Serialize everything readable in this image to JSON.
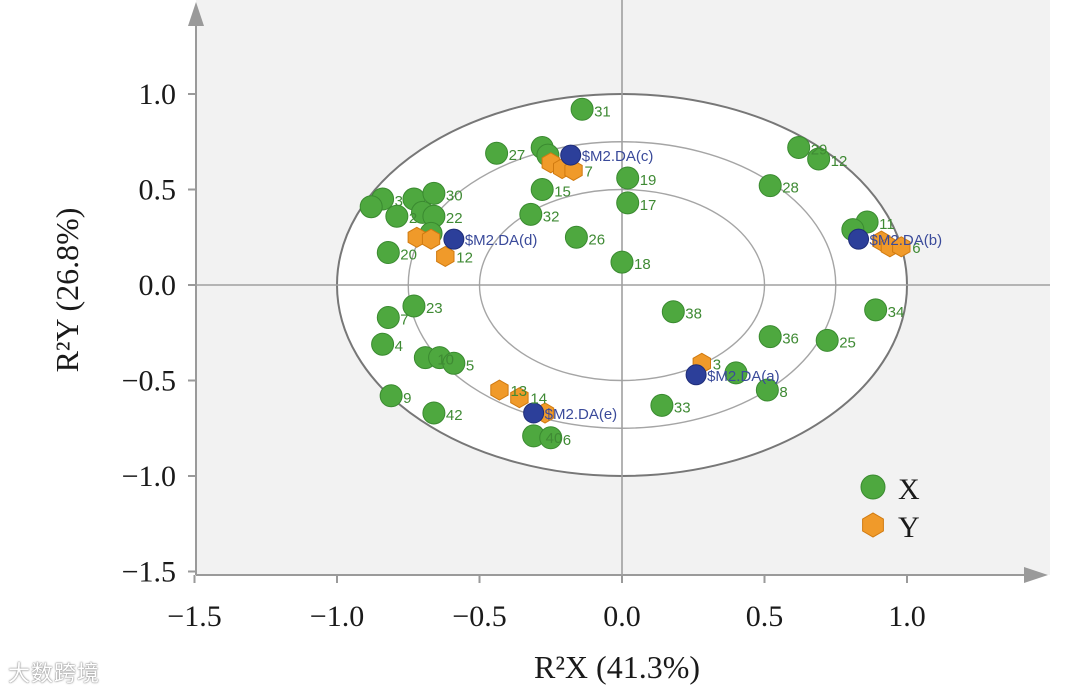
{
  "chart_data": {
    "type": "scatter",
    "title": "",
    "xlabel": "R²X (41.3%)",
    "ylabel": "R²Y (26.8%)",
    "xlim": [
      -1.5,
      1.5
    ],
    "ylim": [
      -1.5,
      1.5
    ],
    "x_ticks": [
      "−1.5",
      "−1.0",
      "−0.5",
      "0.0",
      "0.5",
      "1.0"
    ],
    "y_ticks": [
      "1.0",
      "0.5",
      "0.0",
      "−0.5",
      "−1.0",
      "−1.5"
    ],
    "ellipses_radii": [
      1.0,
      0.75,
      0.5
    ],
    "legend": [
      {
        "name": "X",
        "marker": "circle",
        "color": "#4ea83f"
      },
      {
        "name": "Y",
        "marker": "hexagon",
        "color": "#f09a2a"
      }
    ],
    "colors": {
      "x_point": "#4ea83f",
      "y_point": "#f09a2a",
      "group_point": "#2c3f9a",
      "plot_bg": "#f2f2f2"
    },
    "x_points": [
      {
        "label": "31",
        "x": -0.14,
        "y": 0.92
      },
      {
        "label": "27",
        "x": -0.44,
        "y": 0.69
      },
      {
        "label": "",
        "x": -0.28,
        "y": 0.72
      },
      {
        "label": "",
        "x": -0.26,
        "y": 0.68
      },
      {
        "label": "15",
        "x": -0.28,
        "y": 0.5
      },
      {
        "label": "32",
        "x": -0.32,
        "y": 0.37
      },
      {
        "label": "26",
        "x": -0.16,
        "y": 0.25
      },
      {
        "label": "19",
        "x": 0.02,
        "y": 0.56
      },
      {
        "label": "17",
        "x": 0.02,
        "y": 0.43
      },
      {
        "label": "18",
        "x": 0.0,
        "y": 0.12
      },
      {
        "label": "29",
        "x": 0.62,
        "y": 0.72
      },
      {
        "label": "12",
        "x": 0.69,
        "y": 0.66
      },
      {
        "label": "28",
        "x": 0.52,
        "y": 0.52
      },
      {
        "label": "11",
        "x": 0.86,
        "y": 0.33
      },
      {
        "label": "",
        "x": 0.81,
        "y": 0.29
      },
      {
        "label": "34",
        "x": 0.89,
        "y": -0.13
      },
      {
        "label": "38",
        "x": 0.18,
        "y": -0.14
      },
      {
        "label": "36",
        "x": 0.52,
        "y": -0.27
      },
      {
        "label": "25",
        "x": 0.72,
        "y": -0.29
      },
      {
        "label": "8",
        "x": 0.51,
        "y": -0.55
      },
      {
        "label": "",
        "x": 0.4,
        "y": -0.46
      },
      {
        "label": "33",
        "x": 0.14,
        "y": -0.63
      },
      {
        "label": "3",
        "x": -0.84,
        "y": 0.45
      },
      {
        "label": "",
        "x": -0.88,
        "y": 0.41
      },
      {
        "label": "2",
        "x": -0.79,
        "y": 0.36
      },
      {
        "label": "",
        "x": -0.73,
        "y": 0.45
      },
      {
        "label": "30",
        "x": -0.66,
        "y": 0.48
      },
      {
        "label": "",
        "x": -0.7,
        "y": 0.38
      },
      {
        "label": "22",
        "x": -0.66,
        "y": 0.36
      },
      {
        "label": "",
        "x": -0.67,
        "y": 0.27
      },
      {
        "label": "20",
        "x": -0.82,
        "y": 0.17
      },
      {
        "label": "23",
        "x": -0.73,
        "y": -0.11
      },
      {
        "label": "7",
        "x": -0.82,
        "y": -0.17
      },
      {
        "label": "4",
        "x": -0.84,
        "y": -0.31
      },
      {
        "label": "10",
        "x": -0.69,
        "y": -0.38
      },
      {
        "label": "",
        "x": -0.64,
        "y": -0.38
      },
      {
        "label": "5",
        "x": -0.59,
        "y": -0.41
      },
      {
        "label": "9",
        "x": -0.81,
        "y": -0.58
      },
      {
        "label": "42",
        "x": -0.66,
        "y": -0.67
      },
      {
        "label": "40",
        "x": -0.31,
        "y": -0.79
      },
      {
        "label": "6",
        "x": -0.25,
        "y": -0.8
      }
    ],
    "y_points": [
      {
        "label": "",
        "x": -0.25,
        "y": 0.64
      },
      {
        "label": "",
        "x": -0.21,
        "y": 0.61
      },
      {
        "label": "7",
        "x": -0.17,
        "y": 0.6
      },
      {
        "label": "",
        "x": -0.72,
        "y": 0.25
      },
      {
        "label": "",
        "x": -0.67,
        "y": 0.24
      },
      {
        "label": "12",
        "x": -0.62,
        "y": 0.15
      },
      {
        "label": "",
        "x": 0.91,
        "y": 0.23
      },
      {
        "label": "",
        "x": 0.94,
        "y": 0.2
      },
      {
        "label": "6",
        "x": 0.98,
        "y": 0.2
      },
      {
        "label": "3",
        "x": 0.28,
        "y": -0.41
      },
      {
        "label": "13",
        "x": -0.43,
        "y": -0.55
      },
      {
        "label": "14",
        "x": -0.36,
        "y": -0.59
      },
      {
        "label": "",
        "x": -0.27,
        "y": -0.67
      }
    ],
    "group_points": [
      {
        "label": "$M2.DA(c)",
        "x": -0.18,
        "y": 0.68
      },
      {
        "label": "$M2.DA(d)",
        "x": -0.59,
        "y": 0.24
      },
      {
        "label": "$M2.DA(b)",
        "x": 0.83,
        "y": 0.24
      },
      {
        "label": "$M2.DA(a)",
        "x": 0.26,
        "y": -0.47
      },
      {
        "label": "$M2.DA(e)",
        "x": -0.31,
        "y": -0.67
      }
    ]
  },
  "watermark": "大数跨境"
}
